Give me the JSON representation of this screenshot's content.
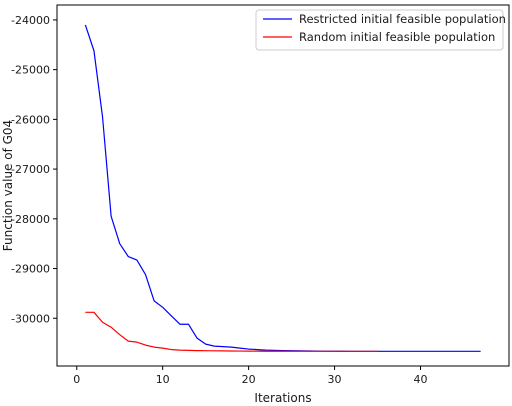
{
  "chart_data": {
    "type": "line",
    "title": "",
    "xlabel": "Iterations",
    "ylabel": "Function value of G04",
    "xlim": [
      -2.3,
      50.3
    ],
    "ylim": [
      -30960,
      -23700
    ],
    "xticks": [
      0,
      10,
      20,
      30,
      40
    ],
    "yticks": [
      -24000,
      -25000,
      -26000,
      -27000,
      -28000,
      -29000,
      -30000
    ],
    "ytick_labels": [
      "-24000",
      "-25000",
      "-26000",
      "-27000",
      "-28000",
      "-29000",
      "-30000"
    ],
    "grid": false,
    "legend_position": "top-right",
    "series": [
      {
        "name": "Restricted initial feasible population",
        "color": "#0000ff",
        "x": [
          1,
          2,
          3,
          4,
          5,
          6,
          7,
          8,
          9,
          10,
          11,
          12,
          13,
          14,
          15,
          16,
          17,
          18,
          19,
          20,
          21,
          22,
          23,
          24,
          25,
          26,
          27,
          28,
          29,
          30,
          31,
          32,
          33,
          34,
          35,
          36,
          37,
          38,
          39,
          40,
          41,
          42,
          43,
          44,
          45,
          46,
          47
        ],
        "y": [
          -24100,
          -24620,
          -25950,
          -27950,
          -28500,
          -28760,
          -28830,
          -29120,
          -29650,
          -29780,
          -29950,
          -30120,
          -30120,
          -30400,
          -30520,
          -30560,
          -30570,
          -30580,
          -30600,
          -30620,
          -30630,
          -30640,
          -30645,
          -30650,
          -30652,
          -30655,
          -30658,
          -30660,
          -30662,
          -30663,
          -30664,
          -30665,
          -30665,
          -30665,
          -30665,
          -30665,
          -30665,
          -30665,
          -30665,
          -30665,
          -30665,
          -30665,
          -30665,
          -30665,
          -30665,
          -30665,
          -30665
        ]
      },
      {
        "name": "Random initial feasible population",
        "color": "#ff0000",
        "x": [
          1,
          2,
          3,
          4,
          5,
          6,
          7,
          8,
          9,
          10,
          11,
          12,
          13,
          14,
          15,
          16,
          17,
          18,
          19,
          20,
          21,
          22,
          23,
          24,
          25,
          26,
          27,
          28,
          29,
          30,
          31,
          32,
          33,
          34,
          35
        ],
        "y": [
          -29880,
          -29880,
          -30080,
          -30180,
          -30330,
          -30460,
          -30480,
          -30540,
          -30580,
          -30600,
          -30630,
          -30640,
          -30645,
          -30650,
          -30652,
          -30655,
          -30656,
          -30658,
          -30660,
          -30661,
          -30662,
          -30663,
          -30664,
          -30664,
          -30665,
          -30665,
          -30665,
          -30665,
          -30665,
          -30665,
          -30665,
          -30665,
          -30665,
          -30665,
          -30665
        ]
      }
    ]
  }
}
